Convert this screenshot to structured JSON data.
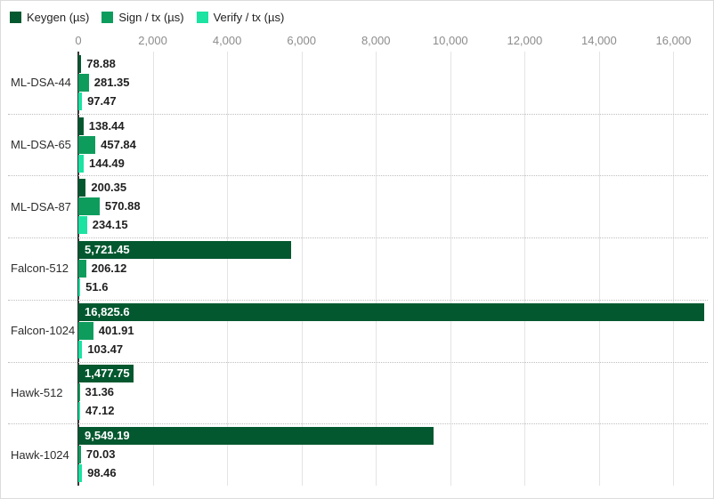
{
  "chart_data": {
    "type": "bar",
    "orientation": "horizontal",
    "title": "",
    "xlabel": "",
    "ylabel": "",
    "categories": [
      "ML-DSA-44",
      "ML-DSA-65",
      "ML-DSA-87",
      "Falcon-512",
      "Falcon-1024",
      "Hawk-512",
      "Hawk-1024"
    ],
    "series": [
      {
        "name": "Keygen (µs)",
        "color": "#04582f",
        "values": [
          78.88,
          138.44,
          200.35,
          5721.45,
          16825.6,
          1477.75,
          9549.19
        ]
      },
      {
        "name": "Sign / tx (µs)",
        "color": "#0e9c5d",
        "values": [
          281.35,
          457.84,
          570.88,
          206.12,
          401.91,
          31.36,
          70.03
        ]
      },
      {
        "name": "Verify / tx (µs)",
        "color": "#1be3a2",
        "values": [
          97.47,
          144.49,
          234.15,
          51.6,
          103.47,
          47.12,
          98.46
        ]
      }
    ],
    "x_ticks": [
      0,
      2000,
      4000,
      6000,
      8000,
      10000,
      12000,
      14000,
      16000
    ],
    "xlim": [
      0,
      17090
    ],
    "grid": true,
    "value_labels": true,
    "legend_position": "top-left"
  },
  "style_colors": {
    "background": "#ffffff",
    "canvas_border": "#dcdcdc",
    "gridline": "#e4e4e4",
    "zero_axis": "#373737",
    "row_separator": "#bfbfbf",
    "tick_text": "#8c8c8c",
    "category_text": "#2d2d2d",
    "value_text": "#1f1f1f",
    "value_text_inside": "#ffffff"
  }
}
